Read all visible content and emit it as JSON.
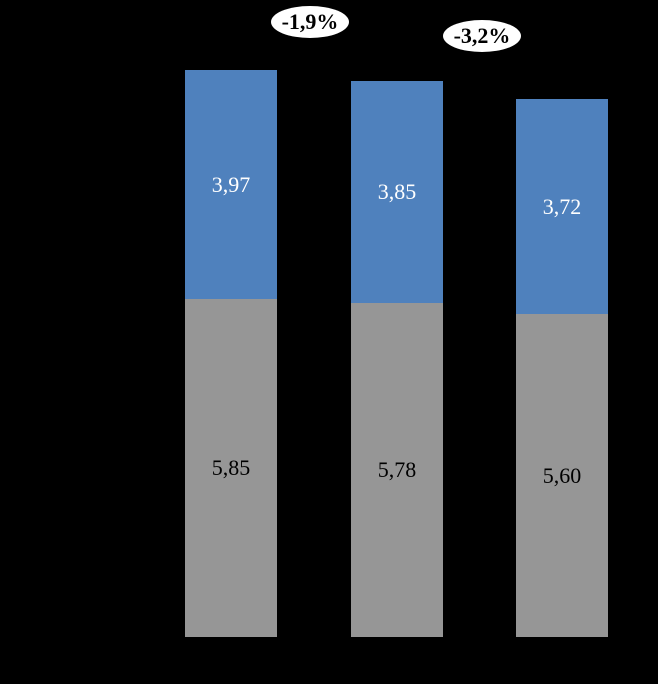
{
  "background_color": "#000000",
  "chart_data": {
    "type": "bar",
    "stacked": true,
    "orientation": "vertical",
    "title": "",
    "xlabel": "",
    "ylabel": "",
    "axis_visible": false,
    "gridlines": false,
    "legend_visible": false,
    "value_decimal_separator": ",",
    "categories": [
      "",
      "",
      ""
    ],
    "series": [
      {
        "name": "bottom-gray-segment",
        "color": "#969696",
        "label_color": "#000000",
        "values": [
          5.85,
          5.78,
          5.6
        ],
        "value_labels": [
          "5,85",
          "5,78",
          "5,60"
        ]
      },
      {
        "name": "top-blue-segment",
        "color": "#4F81BD",
        "label_color": "#FFFFFF",
        "values": [
          3.97,
          3.85,
          3.72
        ],
        "value_labels": [
          "3,97",
          "3,85",
          "3,72"
        ]
      }
    ],
    "stack_totals": [
      9.82,
      9.63,
      9.32
    ],
    "annotations": [
      {
        "text": "-1,9%",
        "shape": "ellipse",
        "fill_color": "#FFFFFF",
        "text_color": "#000000",
        "position": "top, between bar 1 and bar 2"
      },
      {
        "text": "-3,2%",
        "shape": "ellipse",
        "fill_color": "#FFFFFF",
        "text_color": "#000000",
        "position": "top, between bar 2 and bar 3"
      }
    ]
  }
}
